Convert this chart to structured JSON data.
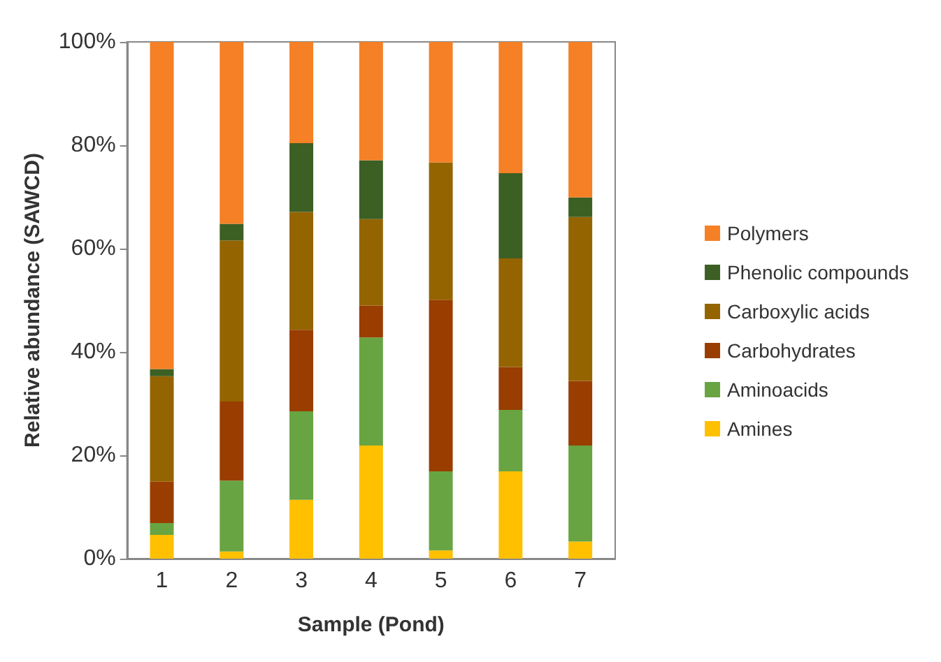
{
  "chart_data": {
    "type": "bar",
    "stacked": true,
    "xlabel": "Sample (Pond)",
    "ylabel": "Relative abundance (SAWCD)",
    "categories": [
      "1",
      "2",
      "3",
      "4",
      "5",
      "6",
      "7"
    ],
    "series": [
      {
        "name": "Amines",
        "color": "#ffc000",
        "values": [
          4.6,
          1.4,
          11.4,
          21.9,
          1.6,
          16.9,
          3.3
        ]
      },
      {
        "name": "Aminoacids",
        "color": "#68a442",
        "values": [
          2.3,
          13.7,
          17.1,
          20.9,
          15.3,
          11.9,
          18.6
        ]
      },
      {
        "name": "Carbohydrates",
        "color": "#993d00",
        "values": [
          8.0,
          15.3,
          15.8,
          6.2,
          33.2,
          8.3,
          12.5
        ]
      },
      {
        "name": "Carboxylic acids",
        "color": "#946400",
        "values": [
          20.4,
          31.2,
          22.8,
          16.7,
          26.6,
          21.0,
          31.7
        ]
      },
      {
        "name": "Phenolic compounds",
        "color": "#3c5f24",
        "values": [
          1.4,
          3.2,
          13.3,
          11.4,
          0,
          16.5,
          3.8
        ]
      },
      {
        "name": "Polymers",
        "color": "#f58025",
        "values": [
          63.3,
          35.2,
          19.6,
          22.9,
          23.3,
          25.4,
          30.1
        ]
      }
    ],
    "ylim": [
      0,
      100
    ],
    "yticks": [
      {
        "value": 0,
        "label": "0%"
      },
      {
        "value": 20,
        "label": "20%"
      },
      {
        "value": 40,
        "label": "40%"
      },
      {
        "value": 60,
        "label": "60%"
      },
      {
        "value": 80,
        "label": "80%"
      },
      {
        "value": 100,
        "label": "100%"
      }
    ],
    "grid": false,
    "legend": "right"
  }
}
